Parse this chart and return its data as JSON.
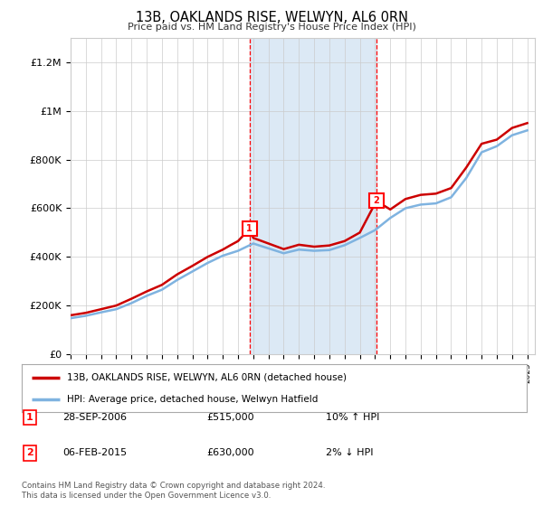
{
  "title": "13B, OAKLANDS RISE, WELWYN, AL6 0RN",
  "subtitle": "Price paid vs. HM Land Registry's House Price Index (HPI)",
  "ylim": [
    0,
    1300000
  ],
  "yticks": [
    0,
    200000,
    400000,
    600000,
    800000,
    1000000,
    1200000
  ],
  "ytick_labels": [
    "£0",
    "£200K",
    "£400K",
    "£600K",
    "£800K",
    "£1M",
    "£1.2M"
  ],
  "background_color": "#ffffff",
  "plot_bg_color": "#ffffff",
  "shade_color": "#dce9f5",
  "transaction1_x": 2006.75,
  "transaction1_y": 515000,
  "transaction2_x": 2015.09,
  "transaction2_y": 630000,
  "legend_entries": [
    "13B, OAKLANDS RISE, WELWYN, AL6 0RN (detached house)",
    "HPI: Average price, detached house, Welwyn Hatfield"
  ],
  "legend_colors": [
    "#cc0000",
    "#7fb3e0"
  ],
  "table_rows": [
    [
      "1",
      "28-SEP-2006",
      "£515,000",
      "10% ↑ HPI"
    ],
    [
      "2",
      "06-FEB-2015",
      "£630,000",
      "2% ↓ HPI"
    ]
  ],
  "footer": "Contains HM Land Registry data © Crown copyright and database right 2024.\nThis data is licensed under the Open Government Licence v3.0.",
  "hpi_line_color": "#7fb3e0",
  "price_line_color": "#cc0000",
  "grid_color": "#cccccc",
  "xmin": 1995,
  "xmax": 2025.5
}
